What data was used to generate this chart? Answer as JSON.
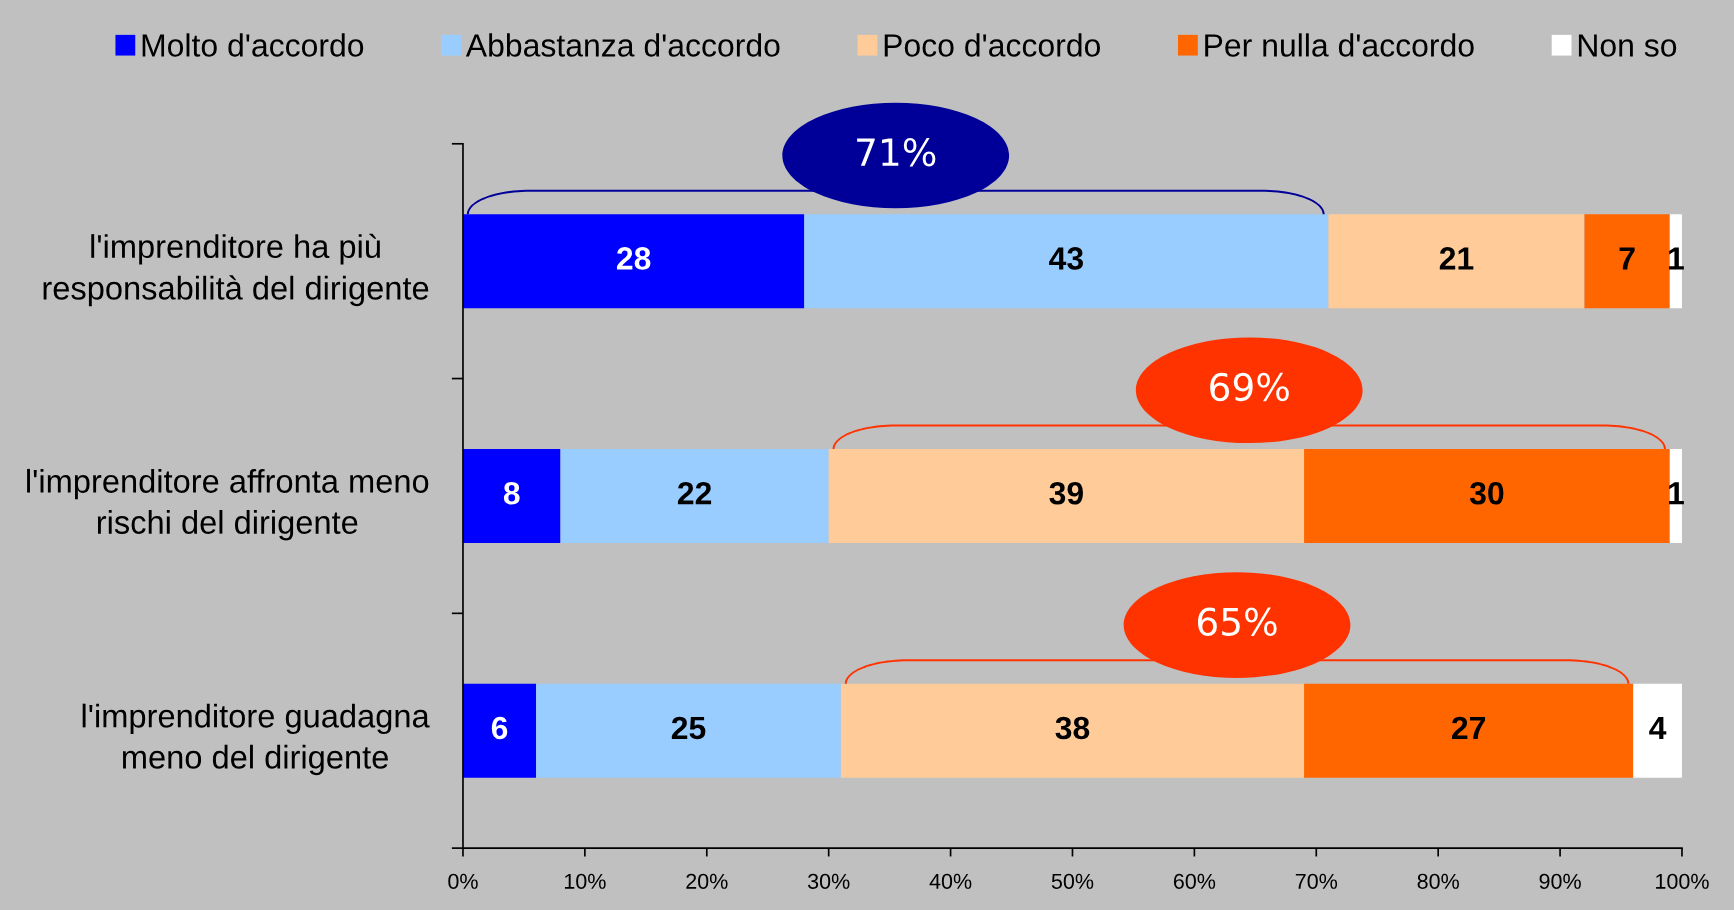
{
  "chart_data": {
    "type": "bar",
    "orientation": "horizontal",
    "stacked": true,
    "categories": [
      "l'imprenditore ha più\nresponsabilità del dirigente",
      "l'imprenditore affronta meno\nrischi del dirigente",
      "l'imprenditore guadagna\nmeno del dirigente"
    ],
    "series": [
      {
        "name": "Molto d'accordo",
        "color": "#0000ff",
        "values": [
          28,
          8,
          6
        ]
      },
      {
        "name": "Abbastanza d'accordo",
        "color": "#99ccff",
        "values": [
          43,
          22,
          25
        ]
      },
      {
        "name": "Poco d'accordo",
        "color": "#ffcc99",
        "values": [
          21,
          39,
          38
        ]
      },
      {
        "name": "Per nulla d'accordo",
        "color": "#ff6600",
        "values": [
          7,
          30,
          27
        ]
      },
      {
        "name": "Non so",
        "color": "#ffffff",
        "values": [
          1,
          1,
          4
        ]
      }
    ],
    "xlim": [
      0,
      100
    ],
    "xticks": [
      {
        "value": 0,
        "label": "0%"
      },
      {
        "value": 10,
        "label": "10%"
      },
      {
        "value": 20,
        "label": "20%"
      },
      {
        "value": 30,
        "label": "30%"
      },
      {
        "value": 40,
        "label": "40%"
      },
      {
        "value": 50,
        "label": "50%"
      },
      {
        "value": 60,
        "label": "60%"
      },
      {
        "value": 70,
        "label": "70%"
      },
      {
        "value": 80,
        "label": "80%"
      },
      {
        "value": 90,
        "label": "90%"
      },
      {
        "value": 100,
        "label": "100%"
      }
    ],
    "data_labels": true,
    "legend": "top",
    "annotations": [
      "71%",
      "69%",
      "65%"
    ]
  }
}
